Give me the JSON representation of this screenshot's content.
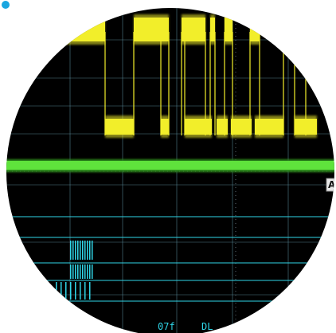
{
  "scope": {
    "trigger_marker_label": "A",
    "decode_text": "07f",
    "decode_text_cut": "DL",
    "colors": {
      "background": "#000000",
      "grid": "#5a8a9a",
      "channel_yellow": "#f2ee2a",
      "channel_green": "#5fe23c",
      "channel_cyan": "#2fd6e8",
      "outer": "#ffffff",
      "corner_dot": "#1aa6e0"
    }
  }
}
